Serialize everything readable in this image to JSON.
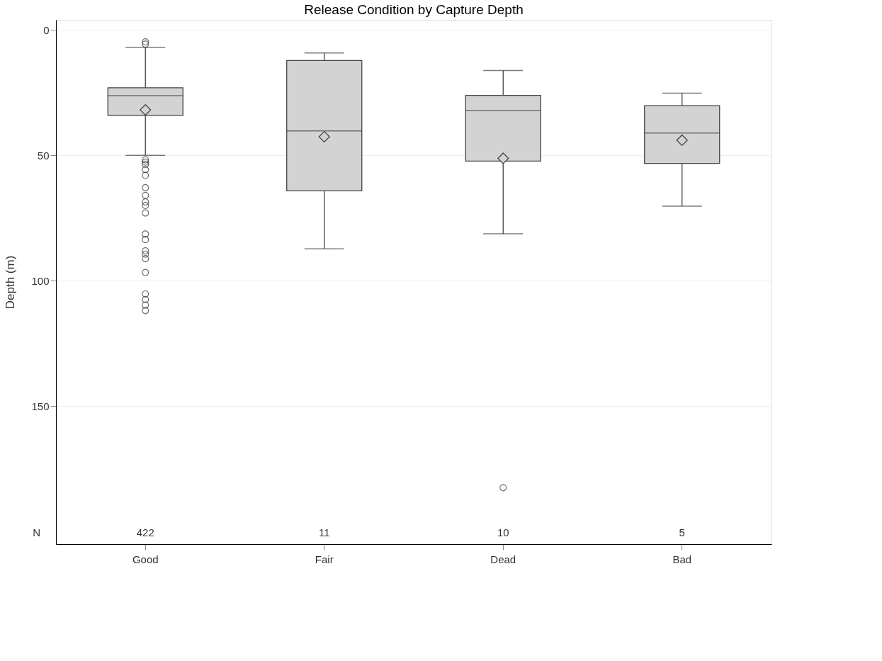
{
  "chart_data": {
    "type": "box",
    "title": "Release Condition by Capture Depth",
    "ylabel": "Depth (m)",
    "categories": [
      "Good",
      "Fair",
      "Dead",
      "Bad"
    ],
    "color": "#d3d3d3",
    "boxes": [
      {
        "low": 7.0,
        "q1": 23.1,
        "median": 26.2,
        "q3": 34.1,
        "high": 50.0,
        "mean": 31.9,
        "outliers": [
          4.8,
          5.7,
          51.8,
          52.7,
          53.6,
          55.7,
          58,
          62.9,
          66,
          68.6,
          70,
          73,
          81.4,
          83.6,
          88.1,
          89.4,
          91.2,
          96.7,
          105.3,
          107.5,
          109.7,
          111.9
        ]
      },
      {
        "low": 9.2,
        "q1": 12.2,
        "median": 40.3,
        "q3": 64.2,
        "high": 87.3,
        "mean": 42.6
      },
      {
        "low": 16.2,
        "q1": 26.1,
        "median": 32.2,
        "q3": 52.3,
        "high": 81.3,
        "mean": 51.2,
        "outliers": [
          182.5
        ]
      },
      {
        "low": 25.2,
        "q1": 30.2,
        "median": 41.1,
        "q3": 53.2,
        "high": 70.3,
        "mean": 44.0
      }
    ],
    "ylim": [
      205,
      -4
    ],
    "yticks": [
      0,
      50,
      100,
      150
    ],
    "grid": "y",
    "annotations": [
      "N",
      "422",
      "11",
      "10",
      "5"
    ]
  }
}
